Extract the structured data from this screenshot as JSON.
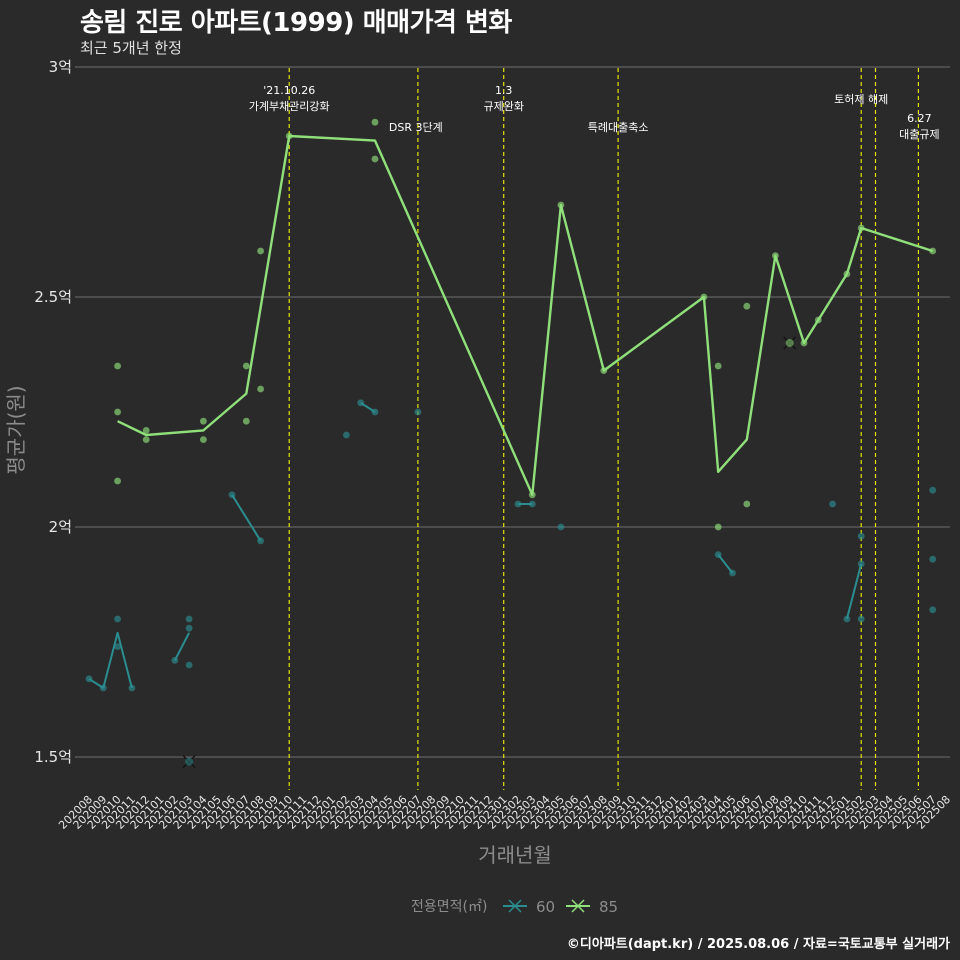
{
  "title": "송림 진로 아파트(1999) 매매가격 변화",
  "subtitle": "최근 5개년 한정",
  "caption": "©디아파트(dapt.kr) / 2025.08.06 / 자료=국토교통부 실거래가",
  "colors": {
    "background": "#2b2a2b",
    "grid": "#6e6e6e",
    "event_line": "#e3e300",
    "series_60": "#2a8d8f",
    "series_85": "#8fe07a"
  },
  "chart_data": {
    "type": "line",
    "title": "송림 진로 아파트(1999) 매매가격 변화",
    "xlabel": "거래년월",
    "ylabel": "평균가(원)",
    "ylim": [
      1.43,
      3.0
    ],
    "y_ticks": [
      1.5,
      2.0,
      2.5,
      3.0
    ],
    "y_tick_labels": [
      "1.5억",
      "2억",
      "2.5억",
      "3억"
    ],
    "categories": [
      "202008",
      "202009",
      "202010",
      "202011",
      "202012",
      "202101",
      "202102",
      "202103",
      "202104",
      "202105",
      "202106",
      "202107",
      "202108",
      "202109",
      "202110",
      "202111",
      "202112",
      "202201",
      "202202",
      "202203",
      "202204",
      "202205",
      "202206",
      "202207",
      "202208",
      "202209",
      "202210",
      "202211",
      "202212",
      "202301",
      "202302",
      "202303",
      "202304",
      "202305",
      "202306",
      "202307",
      "202308",
      "202309",
      "202310",
      "202311",
      "202312",
      "202401",
      "202402",
      "202403",
      "202404",
      "202405",
      "202406",
      "202407",
      "202408",
      "202409",
      "202410",
      "202411",
      "202412",
      "202501",
      "202502",
      "202503",
      "202504",
      "202505",
      "202506",
      "202507",
      "202508"
    ],
    "legend_title": "전용면적(㎡)",
    "series": [
      {
        "name": "60",
        "line": [
          [
            0,
            1.67
          ],
          [
            1,
            1.65
          ],
          [
            2,
            1.77
          ],
          [
            3,
            1.65
          ],
          [
            null,
            null
          ],
          [
            6,
            1.71
          ],
          [
            7,
            1.77
          ],
          [
            null,
            null
          ],
          [
            10,
            2.07
          ],
          [
            12,
            1.97
          ],
          [
            null,
            null
          ],
          [
            19,
            2.27
          ],
          [
            20,
            2.25
          ],
          [
            null,
            null
          ],
          [
            30,
            2.05
          ],
          [
            31,
            2.05
          ],
          [
            null,
            null
          ],
          [
            44,
            1.94
          ],
          [
            45,
            1.9
          ],
          [
            null,
            null
          ],
          [
            53,
            1.8
          ],
          [
            54,
            1.92
          ]
        ],
        "points": [
          [
            0,
            1.67
          ],
          [
            1,
            1.65
          ],
          [
            2,
            1.8
          ],
          [
            2,
            1.74
          ],
          [
            3,
            1.65
          ],
          [
            6,
            1.71
          ],
          [
            7,
            1.8
          ],
          [
            7,
            1.78
          ],
          [
            7,
            1.7
          ],
          [
            10,
            2.07
          ],
          [
            12,
            1.97
          ],
          [
            18,
            2.2
          ],
          [
            19,
            2.27
          ],
          [
            20,
            2.25
          ],
          [
            23,
            2.25
          ],
          [
            30,
            2.05
          ],
          [
            31,
            2.05
          ],
          [
            33,
            2.0
          ],
          [
            44,
            1.94
          ],
          [
            45,
            1.9
          ],
          [
            52,
            2.05
          ],
          [
            53,
            1.8
          ],
          [
            54,
            1.98
          ],
          [
            54,
            1.92
          ],
          [
            54,
            1.8
          ],
          [
            59,
            2.08
          ],
          [
            59,
            1.93
          ],
          [
            59,
            1.82
          ]
        ],
        "cancelled": [
          [
            7,
            1.49
          ]
        ]
      },
      {
        "name": "85",
        "line": [
          [
            2,
            2.23
          ],
          [
            4,
            2.2
          ],
          [
            8,
            2.21
          ],
          [
            11,
            2.29
          ],
          [
            14,
            2.85
          ],
          [
            20,
            2.84
          ],
          [
            31,
            2.07
          ],
          [
            33,
            2.7
          ],
          [
            36,
            2.34
          ],
          [
            43,
            2.5
          ],
          [
            44,
            2.12
          ],
          [
            46,
            2.19
          ],
          [
            48,
            2.59
          ],
          [
            50,
            2.4
          ],
          [
            51,
            2.45
          ],
          [
            53,
            2.55
          ],
          [
            54,
            2.65
          ],
          [
            59,
            2.6
          ]
        ],
        "points": [
          [
            2,
            2.35
          ],
          [
            2,
            2.25
          ],
          [
            2,
            2.1
          ],
          [
            4,
            2.21
          ],
          [
            4,
            2.19
          ],
          [
            8,
            2.23
          ],
          [
            8,
            2.19
          ],
          [
            11,
            2.35
          ],
          [
            11,
            2.23
          ],
          [
            12,
            2.6
          ],
          [
            12,
            2.3
          ],
          [
            14,
            2.85
          ],
          [
            20,
            2.88
          ],
          [
            20,
            2.8
          ],
          [
            31,
            2.07
          ],
          [
            33,
            2.7
          ],
          [
            36,
            2.34
          ],
          [
            43,
            2.5
          ],
          [
            44,
            2.35
          ],
          [
            44,
            2.0
          ],
          [
            46,
            2.48
          ],
          [
            46,
            2.05
          ],
          [
            48,
            2.59
          ],
          [
            50,
            2.4
          ],
          [
            51,
            2.45
          ],
          [
            53,
            2.55
          ],
          [
            54,
            2.65
          ],
          [
            59,
            2.6
          ]
        ],
        "cancelled": [
          [
            49,
            2.4
          ]
        ]
      }
    ],
    "events": [
      {
        "index": 14,
        "text": [
          "'21.10.26",
          "가계부채관리강화"
        ]
      },
      {
        "index": 23,
        "text": [
          "DSR 3단계"
        ]
      },
      {
        "index": 29,
        "text": [
          "1.3",
          "규제완화"
        ]
      },
      {
        "index": 37,
        "text": [
          "특례대출축소"
        ]
      },
      {
        "index": 54,
        "text": [
          "토허제 해제"
        ]
      },
      {
        "index": 55,
        "text": []
      },
      {
        "index": 58,
        "text": [
          "6.27",
          "대출규제"
        ]
      }
    ]
  }
}
